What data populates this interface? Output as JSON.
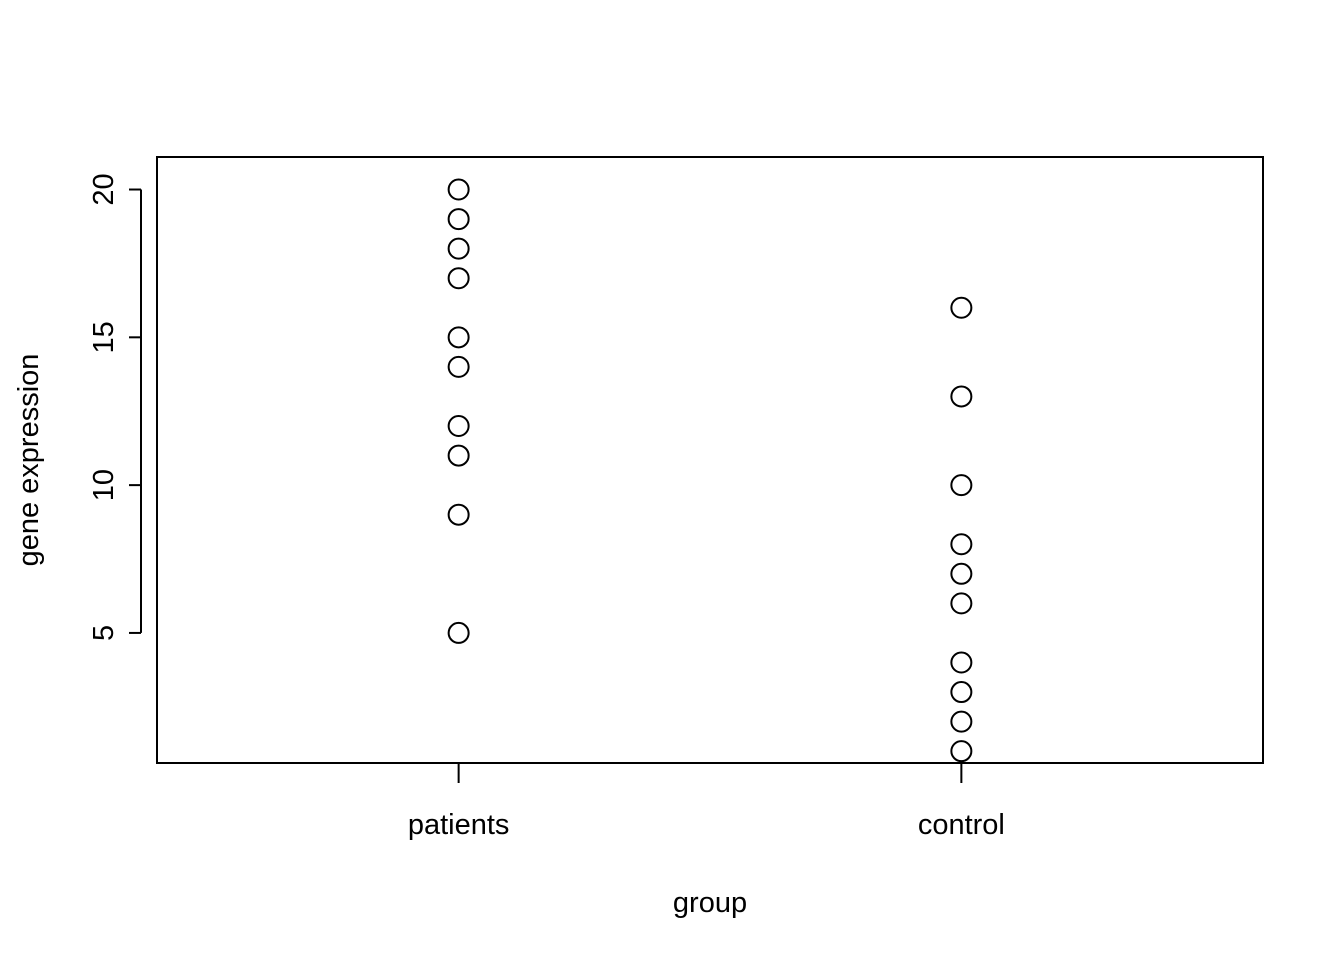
{
  "chart_data": {
    "type": "scatter",
    "title": "",
    "xlabel": "group",
    "ylabel": "gene expression",
    "categories": [
      "patients",
      "control"
    ],
    "ylim": [
      0.6,
      21.1
    ],
    "y_ticks": [
      "5",
      "10",
      "15",
      "20"
    ],
    "grid": false,
    "series": [
      {
        "category": "patients",
        "values": [
          5,
          9,
          11,
          12,
          14,
          15,
          17,
          18,
          19,
          20
        ]
      },
      {
        "category": "control",
        "values": [
          1,
          2,
          3,
          4,
          6,
          7,
          8,
          10,
          13,
          16
        ]
      }
    ]
  }
}
